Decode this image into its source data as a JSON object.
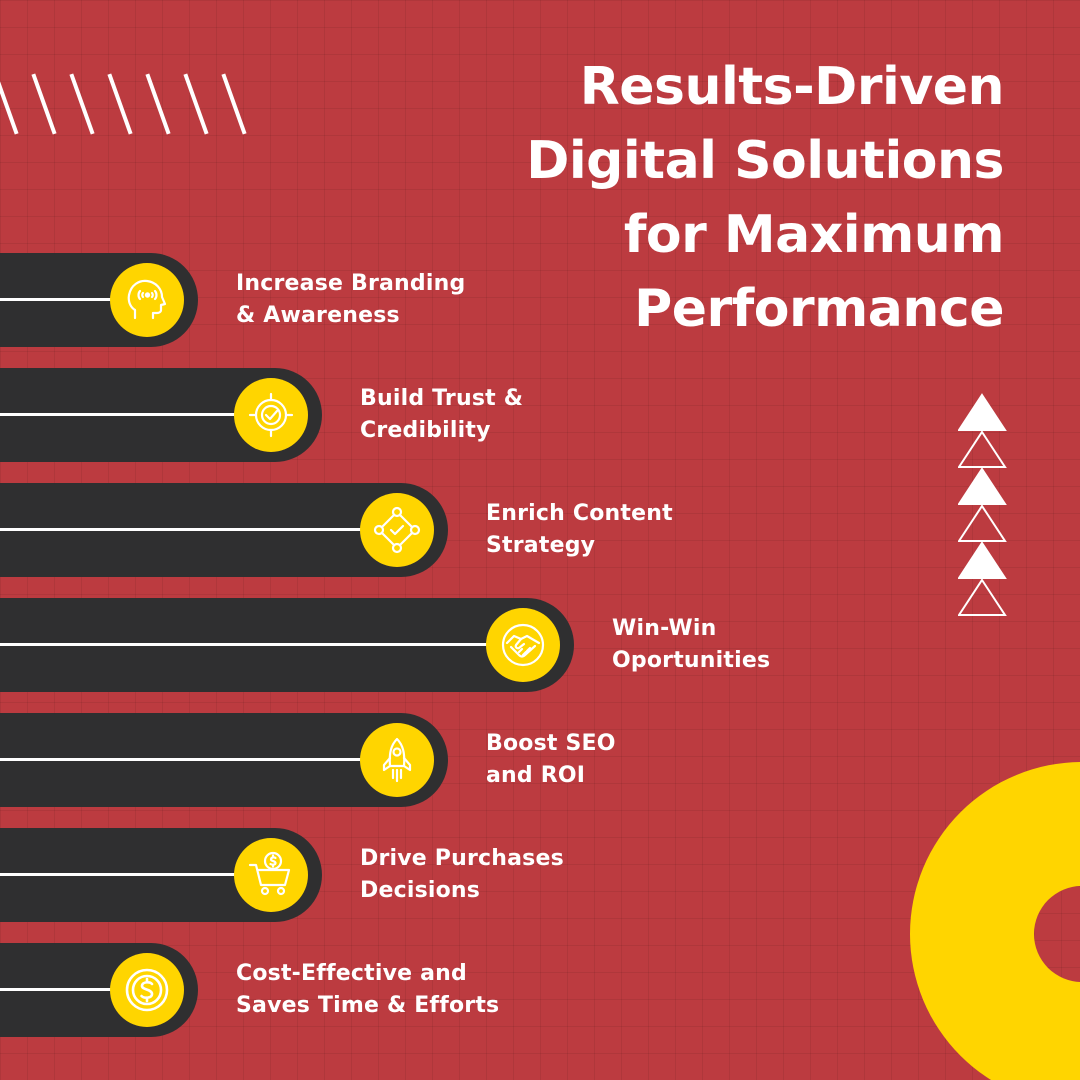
{
  "title": {
    "lines": [
      "Results-Driven",
      "Digital Solutions",
      "for Maximum",
      "Performance"
    ]
  },
  "items": [
    {
      "line1": "Increase Branding",
      "line2": "& Awareness",
      "icon": "head-signal-icon"
    },
    {
      "line1": "Build Trust &",
      "line2": "Credibility",
      "icon": "target-check-icon"
    },
    {
      "line1": "Enrich Content",
      "line2": "Strategy",
      "icon": "strategy-network-icon"
    },
    {
      "line1": "Win-Win",
      "line2": "Oportunities",
      "icon": "handshake-icon"
    },
    {
      "line1": "Boost SEO",
      "line2": "and ROI",
      "icon": "rocket-icon"
    },
    {
      "line1": "Drive Purchases",
      "line2": "Decisions",
      "icon": "shopping-cart-icon"
    },
    {
      "line1": "Cost-Effective and",
      "line2": "Saves Time & Efforts",
      "icon": "dollar-coin-icon"
    }
  ],
  "colors": {
    "background": "#BC3B40",
    "bar": "#2F2F30",
    "accent": "#FFD500",
    "text": "#FFFFFF"
  }
}
